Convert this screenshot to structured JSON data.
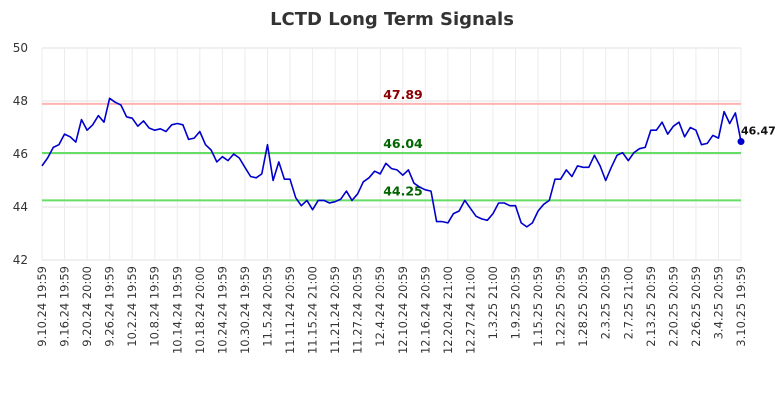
{
  "chart_data": {
    "type": "line",
    "title": "LCTD Long Term Signals",
    "ylim": [
      42,
      50
    ],
    "yticks": [
      "42",
      "44",
      "46",
      "48",
      "50"
    ],
    "grid": true,
    "x_tick_labels": [
      "9.10.24 19:59",
      "9.16.24 19:59",
      "9.20.24 20:00",
      "9.26.24 19:59",
      "10.2.24 19:59",
      "10.8.24 19:59",
      "10.14.24 19:59",
      "10.18.24 20:00",
      "10.24.24 19:59",
      "10.30.24 19:59",
      "11.5.24 20:59",
      "11.11.24 20:59",
      "11.15.24 21:00",
      "11.21.24 20:59",
      "11.27.24 20:59",
      "12.4.24 20:59",
      "12.10.24 20:59",
      "12.16.24 20:59",
      "12.20.24 21:00",
      "12.27.24 21:00",
      "1.3.25 21:00",
      "1.9.25 20:59",
      "1.15.25 20:59",
      "1.22.25 20:59",
      "1.28.25 20:59",
      "2.3.25 20:59",
      "2.7.25 21:00",
      "2.13.25 20:59",
      "2.20.25 20:59",
      "2.26.25 20:59",
      "3.4.25 20:59",
      "3.10.25 19:59"
    ],
    "series": [
      {
        "color": "#0000cc",
        "values": [
          45.55,
          45.85,
          46.25,
          46.35,
          46.75,
          46.65,
          46.45,
          47.3,
          46.9,
          47.1,
          47.45,
          47.2,
          48.1,
          47.95,
          47.85,
          47.4,
          47.35,
          47.05,
          47.25,
          46.98,
          46.9,
          46.95,
          46.85,
          47.1,
          47.15,
          47.1,
          46.55,
          46.6,
          46.85,
          46.35,
          46.15,
          45.7,
          45.9,
          45.75,
          46.0,
          45.85,
          45.5,
          45.15,
          45.1,
          45.25,
          46.35,
          45.0,
          45.7,
          45.05,
          45.05,
          44.35,
          44.05,
          44.25,
          43.9,
          44.25,
          44.25,
          44.15,
          44.2,
          44.3,
          44.6,
          44.25,
          44.5,
          44.95,
          45.1,
          45.35,
          45.25,
          45.65,
          45.45,
          45.4,
          45.2,
          45.4,
          44.9,
          44.75,
          44.65,
          44.6,
          43.45,
          43.45,
          43.4,
          43.75,
          43.85,
          44.25,
          43.95,
          43.65,
          43.55,
          43.5,
          43.75,
          44.15,
          44.15,
          44.05,
          44.05,
          43.4,
          43.25,
          43.4,
          43.85,
          44.1,
          44.25,
          45.05,
          45.05,
          45.4,
          45.15,
          45.55,
          45.5,
          45.5,
          45.95,
          45.55,
          45.0,
          45.5,
          45.95,
          46.05,
          45.75,
          46.05,
          46.2,
          46.25,
          46.9,
          46.9,
          47.2,
          46.75,
          47.05,
          47.2,
          46.65,
          47.0,
          46.9,
          46.35,
          46.4,
          46.7,
          46.6,
          47.6,
          47.15,
          47.55,
          46.47
        ]
      }
    ],
    "signal_lines": [
      {
        "value": 47.89,
        "label": "47.89",
        "line_color": "#ffb3b3",
        "label_color": "#8b0000"
      },
      {
        "value": 46.04,
        "label": "46.04",
        "line_color": "#66dd66",
        "label_color": "#006400"
      },
      {
        "value": 44.25,
        "label": "44.25",
        "line_color": "#66dd66",
        "label_color": "#006400"
      }
    ],
    "last_point": {
      "value": 46.47,
      "label": "46.47",
      "marker_color": "#0000cc"
    }
  }
}
